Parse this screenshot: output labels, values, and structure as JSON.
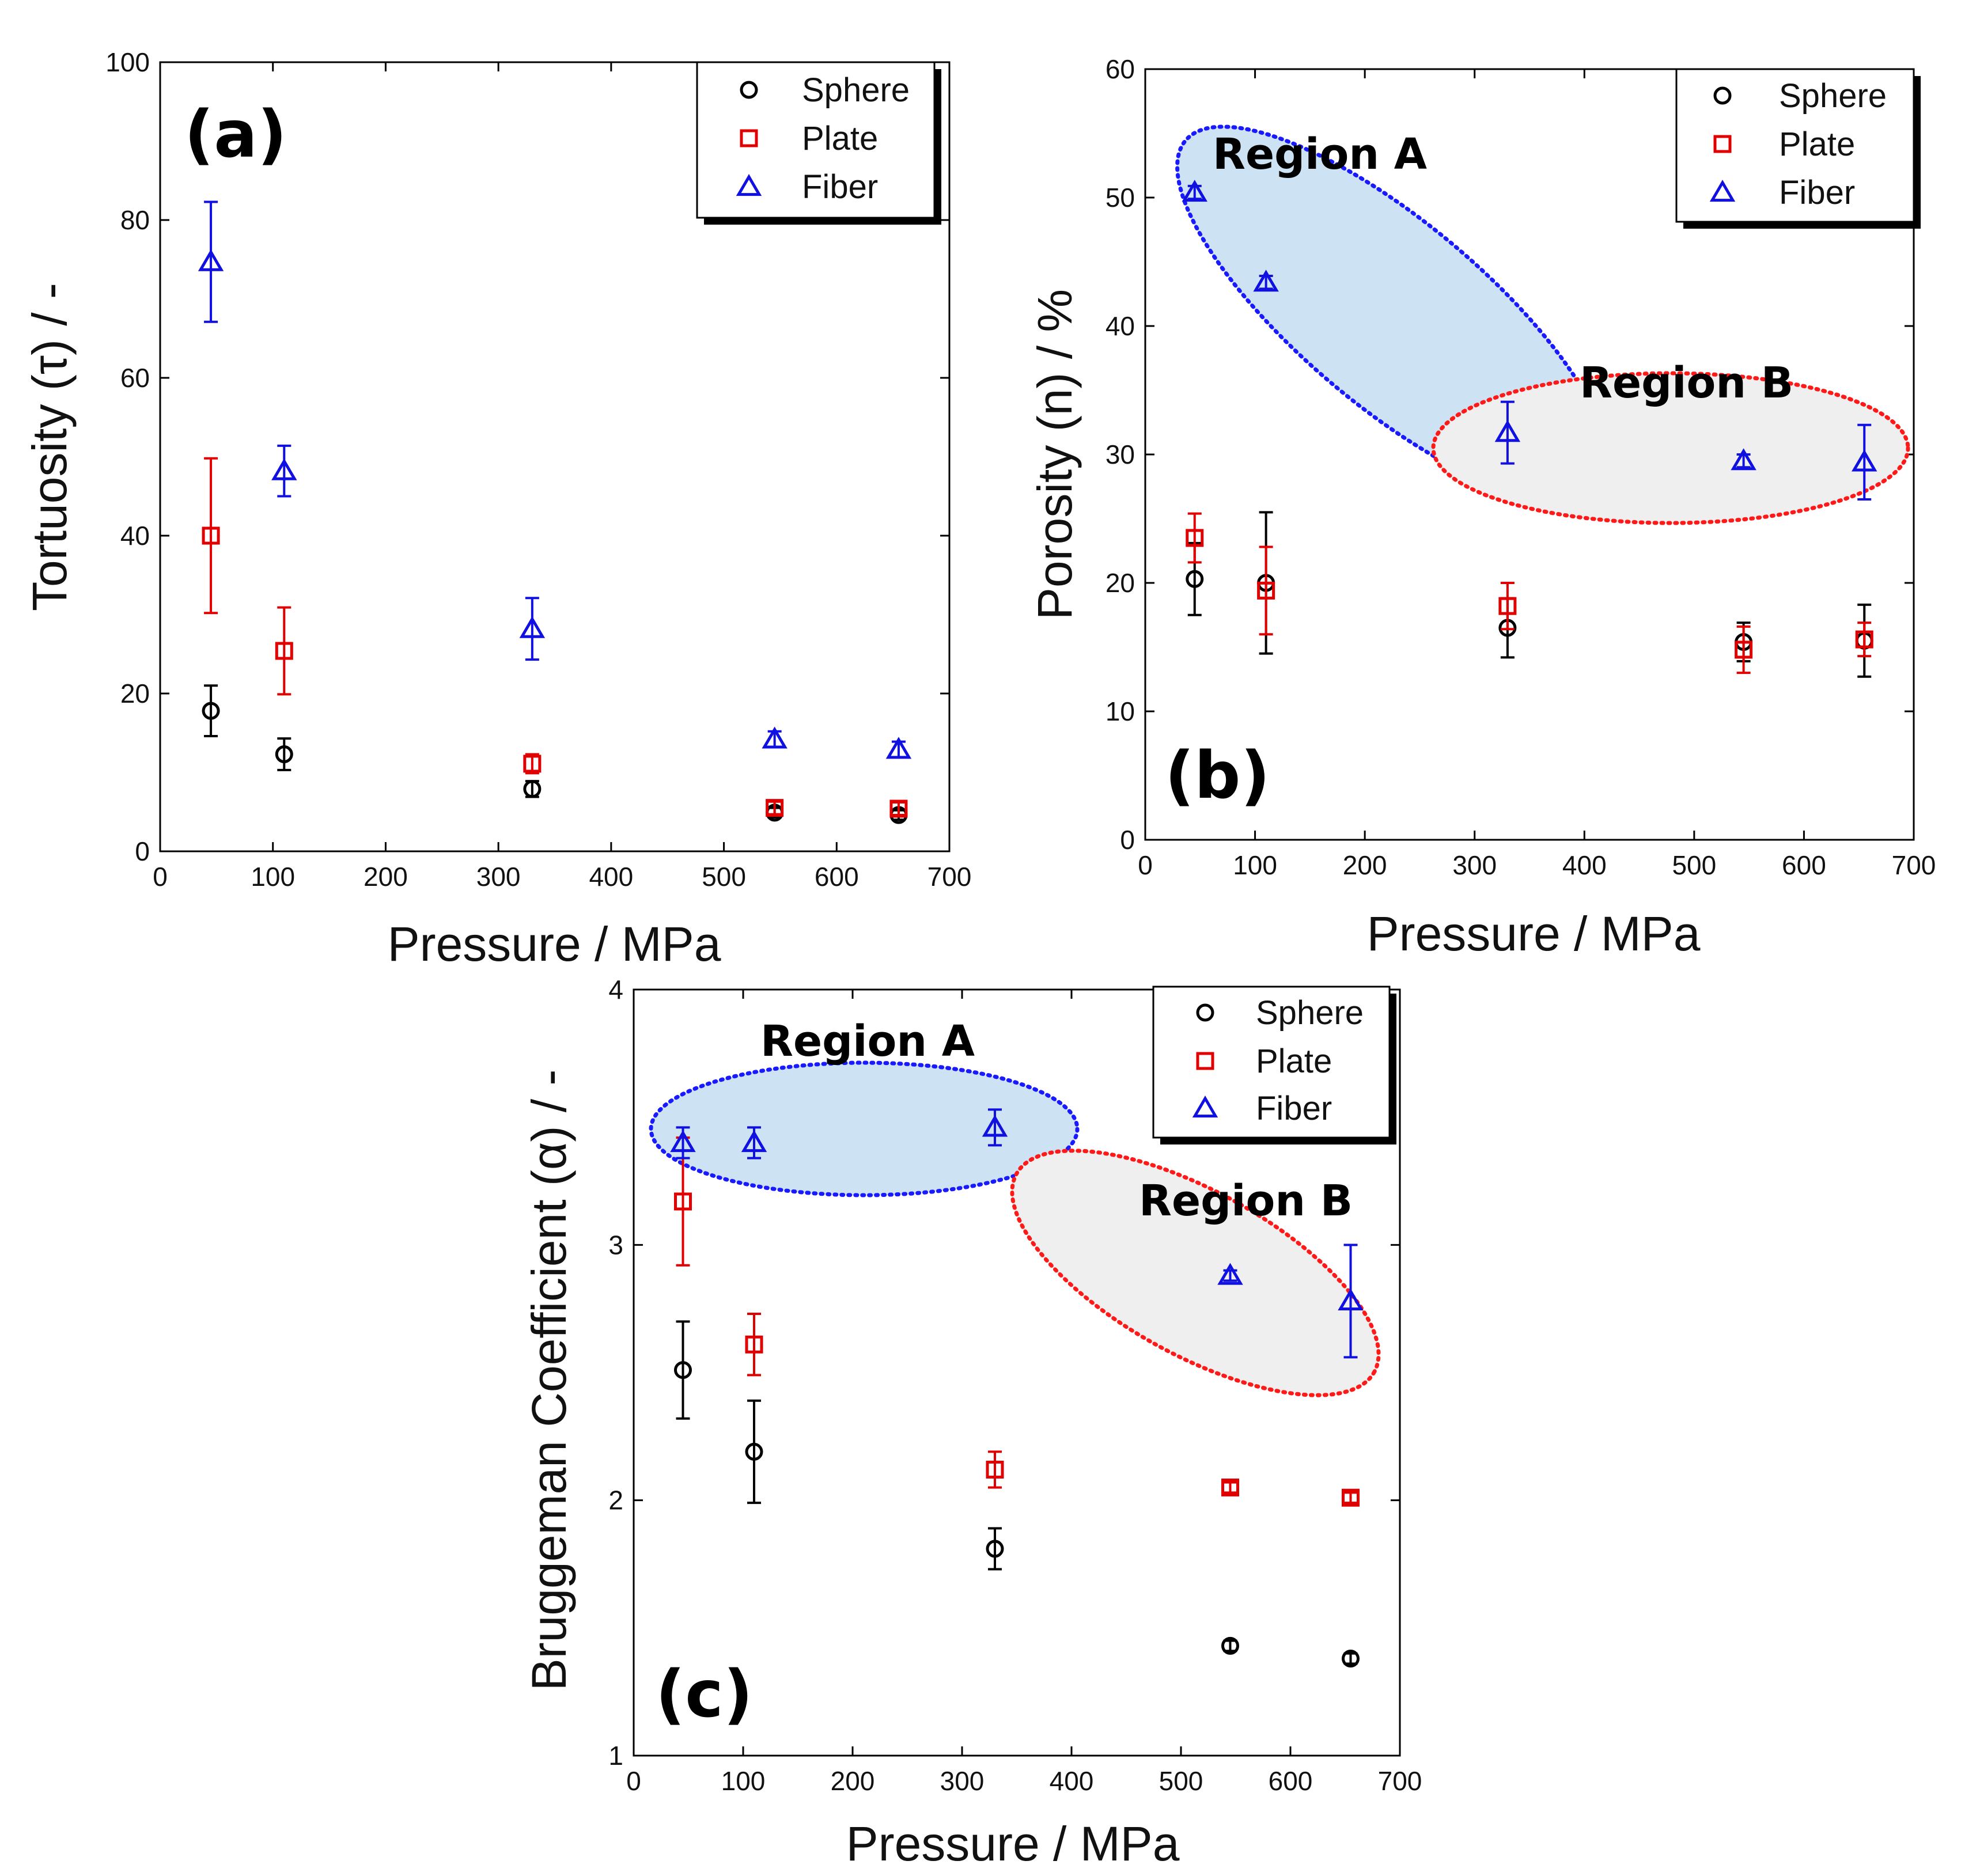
{
  "colors": {
    "sphere": "#000000",
    "plate": "#e00000",
    "fiber": "#1010e0",
    "regionA_fill": "#cde2f2",
    "regionA_stroke": "#1a1aff",
    "regionB_fill": "#efefef",
    "regionB_stroke": "#ff1a1a"
  },
  "chart_data": [
    {
      "type": "scatter",
      "panel_label": "(a)",
      "xlabel": "Pressure / MPa",
      "ylabel": "Tortuosity (τ) / -",
      "xlim": [
        0,
        700
      ],
      "ylim": [
        0,
        100
      ],
      "xticks": [
        "0",
        "100",
        "200",
        "300",
        "400",
        "500",
        "600",
        "700"
      ],
      "yticks": [
        "0",
        "20",
        "40",
        "60",
        "80",
        "100"
      ],
      "legend": {
        "position": "top-right",
        "entries": [
          "Sphere",
          "Plate",
          "Fiber"
        ]
      },
      "x": [
        45,
        110,
        330,
        545,
        655
      ],
      "series": [
        {
          "name": "Sphere",
          "marker": "circle",
          "values": [
            17.8,
            12.3,
            7.9,
            4.9,
            4.6
          ],
          "err": [
            3.2,
            2.0,
            1.0,
            0.6,
            0.6
          ]
        },
        {
          "name": "Plate",
          "marker": "square",
          "values": [
            40,
            25.4,
            11.1,
            5.5,
            5.4
          ],
          "err": [
            9.8,
            5.5,
            1.2,
            0.8,
            0.8
          ]
        },
        {
          "name": "Fiber",
          "marker": "triangle",
          "values": [
            74.7,
            48.2,
            28.2,
            14.2,
            12.9
          ],
          "err": [
            7.6,
            3.2,
            3.9,
            1.0,
            1.0
          ]
        }
      ],
      "regions": []
    },
    {
      "type": "scatter",
      "panel_label": "(b)",
      "xlabel": "Pressure / MPa",
      "ylabel": "Porosity (n) / %",
      "xlim": [
        0,
        700
      ],
      "ylim": [
        0,
        60
      ],
      "xticks": [
        "0",
        "100",
        "200",
        "300",
        "400",
        "500",
        "600",
        "700"
      ],
      "yticks": [
        "0",
        "10",
        "20",
        "30",
        "40",
        "50",
        "60"
      ],
      "legend": {
        "position": "top-right",
        "entries": [
          "Sphere",
          "Plate",
          "Fiber"
        ]
      },
      "x": [
        45,
        110,
        330,
        545,
        655
      ],
      "series": [
        {
          "name": "Sphere",
          "marker": "circle",
          "values": [
            20.3,
            20.0,
            16.5,
            15.4,
            15.5
          ],
          "err": [
            2.8,
            5.5,
            2.3,
            1.5,
            2.8
          ]
        },
        {
          "name": "Plate",
          "marker": "square",
          "values": [
            23.5,
            19.4,
            18.2,
            14.8,
            15.6
          ],
          "err": [
            1.9,
            3.4,
            1.8,
            1.8,
            1.3
          ]
        },
        {
          "name": "Fiber",
          "marker": "triangle",
          "values": [
            50.4,
            43.4,
            31.7,
            29.5,
            29.4
          ],
          "err": [
            0.5,
            0.5,
            2.4,
            0.5,
            2.9
          ]
        }
      ],
      "regions": [
        {
          "label": "Region A",
          "style": "blue"
        },
        {
          "label": "Region B",
          "style": "gray"
        }
      ]
    },
    {
      "type": "scatter",
      "panel_label": "(c)",
      "xlabel": "Pressure / MPa",
      "ylabel": "Bruggeman Coefficient (α) / -",
      "xlim": [
        0,
        700
      ],
      "ylim": [
        1,
        4
      ],
      "xticks": [
        "0",
        "100",
        "200",
        "300",
        "400",
        "500",
        "600",
        "700"
      ],
      "yticks": [
        "1",
        "2",
        "3",
        "4"
      ],
      "legend": {
        "position": "top-right",
        "entries": [
          "Sphere",
          "Plate",
          "Fiber"
        ]
      },
      "x": [
        45,
        110,
        330,
        545,
        655
      ],
      "series": [
        {
          "name": "Sphere",
          "marker": "circle",
          "values": [
            2.51,
            2.19,
            1.81,
            1.43,
            1.38
          ],
          "err": [
            0.19,
            0.2,
            0.08,
            0.02,
            0.02
          ]
        },
        {
          "name": "Plate",
          "marker": "square",
          "values": [
            3.17,
            2.61,
            2.12,
            2.05,
            2.01
          ],
          "err": [
            0.25,
            0.12,
            0.07,
            0.02,
            0.02
          ]
        },
        {
          "name": "Fiber",
          "marker": "triangle",
          "values": [
            3.4,
            3.4,
            3.46,
            2.88,
            2.78
          ],
          "err": [
            0.06,
            0.06,
            0.07,
            0.02,
            0.22
          ]
        }
      ],
      "regions": [
        {
          "label": "Region A",
          "style": "blue"
        },
        {
          "label": "Region B",
          "style": "gray"
        }
      ]
    }
  ]
}
